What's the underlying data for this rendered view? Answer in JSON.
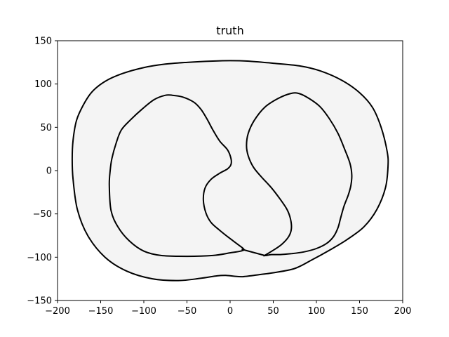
{
  "chart_data": {
    "type": "line",
    "title": "truth",
    "xlabel": "",
    "ylabel": "",
    "xlim": [
      -200,
      200
    ],
    "ylim": [
      -150,
      150
    ],
    "xticks": [
      -200,
      -150,
      -100,
      -50,
      0,
      50,
      100,
      150,
      200
    ],
    "yticks": [
      -150,
      -100,
      -50,
      0,
      50,
      100,
      150
    ],
    "xtick_labels": [
      "−200",
      "−150",
      "−100",
      "−50",
      "0",
      "50",
      "100",
      "150",
      "200"
    ],
    "ytick_labels": [
      "−150",
      "−100",
      "−50",
      "0",
      "50",
      "100",
      "150"
    ],
    "grid": false,
    "fill_color": "#f4f4f4",
    "line_color": "#000000",
    "series": [
      {
        "closed": true,
        "filled": true,
        "x": [
          -183,
          -182,
          -178,
          -170,
          -160,
          -145,
          -125,
          -100,
          -75,
          -50,
          -20,
          0,
          20,
          50,
          80,
          105,
          130,
          150,
          165,
          175,
          182,
          183,
          180,
          170,
          155,
          135,
          115,
          95,
          75,
          50,
          35,
          15,
          5,
          -5,
          -15,
          -35,
          -60,
          -90,
          -120,
          -145,
          -165,
          -177,
          -182
        ],
        "y": [
          13,
          35,
          58,
          76,
          91,
          103,
          112,
          119,
          123,
          125,
          126.5,
          127,
          126.5,
          124,
          121,
          115,
          104,
          90,
          73,
          50,
          22,
          5,
          -20,
          -45,
          -65,
          -80,
          -92,
          -103,
          -113,
          -118,
          -120,
          -122.5,
          -122,
          -121,
          -121.5,
          -124.5,
          -127,
          -125,
          -116,
          -100,
          -75,
          -45,
          -10
        ]
      },
      {
        "closed": true,
        "filled": false,
        "x": [
          -139,
          -137,
          -132,
          -126,
          -115,
          -102,
          -88,
          -75,
          -67,
          -55,
          -42,
          -34,
          -27,
          -20,
          -12,
          -3,
          1,
          1,
          -3,
          -12,
          -22,
          -29,
          -31,
          -28,
          -22,
          -12,
          -2,
          10,
          16,
          12,
          0,
          -20,
          -50,
          -80,
          -100,
          -117,
          -130,
          -138,
          -140
        ],
        "y": [
          0,
          14,
          32,
          47,
          59,
          71,
          82,
          87,
          87,
          85,
          79,
          71,
          60,
          47,
          34,
          24,
          14,
          7,
          2,
          -3,
          -10,
          -20,
          -34,
          -49,
          -60,
          -69,
          -77,
          -86,
          -91,
          -93,
          -95,
          -98,
          -99,
          -98,
          -93,
          -81,
          -65,
          -46,
          -17
        ]
      },
      {
        "closed": true,
        "filled": false,
        "x": [
          14,
          40
        ],
        "y": [
          -91,
          -98
        ]
      },
      {
        "closed": true,
        "filled": false,
        "x": [
          40,
          50,
          60,
          68,
          71,
          70,
          66,
          58,
          48,
          36,
          27,
          21,
          19,
          21,
          28,
          40,
          55,
          70,
          80,
          92,
          104,
          115,
          125,
          133,
          139,
          141,
          140,
          137,
          132,
          128,
          125,
          120,
          112,
          100,
          85,
          70,
          58,
          48,
          42,
          40
        ],
        "y": [
          -98,
          -92,
          -85,
          -76,
          -67,
          -56,
          -45,
          -33,
          -20,
          -7,
          4,
          17,
          29,
          43,
          58,
          73,
          83,
          89,
          89,
          83,
          74,
          60,
          43,
          24,
          8,
          -5,
          -17,
          -28,
          -41,
          -55,
          -66,
          -76,
          -84,
          -90,
          -94,
          -96,
          -97,
          -97,
          -98,
          -98
        ]
      }
    ]
  }
}
